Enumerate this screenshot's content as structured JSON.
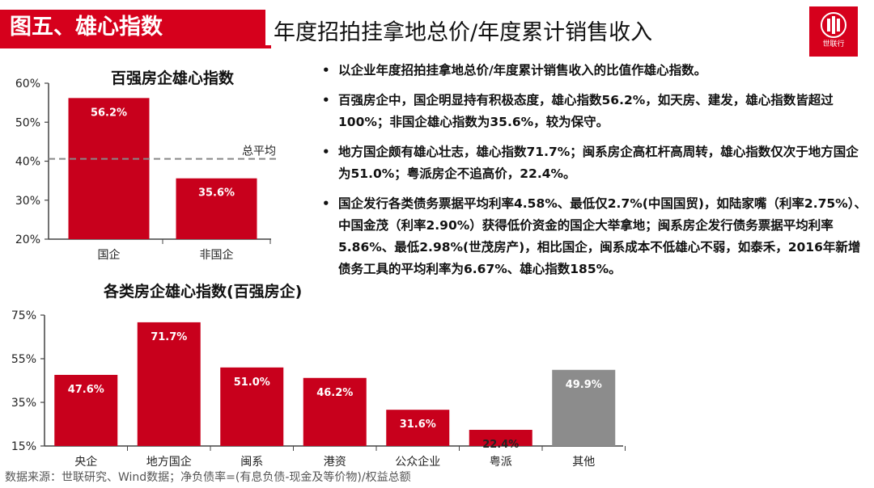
{
  "header": {
    "section_label": "图五、雄心指数",
    "title": "年度招拍挂拿地总价/年度累计销售收入",
    "logo_text": "世联行"
  },
  "bullets": [
    "以企业年度招拍挂拿地总价/年度累计销售收入的比值作雄心指数。",
    "百强房企中，国企明显持有积极态度，雄心指数56.2%，如天房、建发，雄心指数皆超过100%；非国企雄心指数为35.6%，较为保守。",
    "地方国企颇有雄心壮志，雄心指数71.7%；闽系房企高杠杆高周转，雄心指数仅次于地方国企为51.0%；粤派房企不追高价，22.4%。",
    "国企发行各类债务票据平均利率4.58%、最低仅2.7%(中国国贸)，如陆家嘴（利率2.75%）、中国金茂（利率2.90%）获得低价资金的国企大举拿地；闽系房企发行债务票据平均利率5.86%、最低2.98%(世茂房产)，相比国企，闽系成本不低雄心不弱，如泰禾，2016年新增债务工具的平均利率为6.67%、雄心指数185%。"
  ],
  "source": "数据来源：世联研究、Wind数据；净负债率=(有息负债-现金及等价物)/权益总额",
  "colors": {
    "bar_red": "#c8001c",
    "bar_gray": "#8c8c8c",
    "brand": "#d6001c"
  },
  "chart_data": [
    {
      "type": "bar",
      "title": "百强房企雄心指数",
      "categories": [
        "国企",
        "非国企"
      ],
      "values": [
        56.2,
        35.6
      ],
      "value_labels": [
        "56.2%",
        "35.6%"
      ],
      "ylim": [
        20,
        60
      ],
      "yticks": [
        "20%",
        "30%",
        "40%",
        "50%",
        "60%"
      ],
      "reference_line": {
        "value": 40.6,
        "label": "总平均"
      },
      "grid": false
    },
    {
      "type": "bar",
      "title": "各类房企雄心指数(百强房企)",
      "categories": [
        "央企",
        "地方国企",
        "闽系",
        "港资",
        "公众企业",
        "粤派",
        "其他"
      ],
      "values": [
        47.6,
        71.7,
        51.0,
        46.2,
        31.6,
        22.4,
        49.9
      ],
      "value_labels": [
        "47.6%",
        "71.7%",
        "51.0%",
        "46.2%",
        "31.6%",
        "22.4%",
        "49.9%"
      ],
      "bar_colors": [
        "red",
        "red",
        "red",
        "red",
        "red",
        "red",
        "gray"
      ],
      "ylim": [
        15,
        75
      ],
      "yticks": [
        "15%",
        "35%",
        "55%",
        "75%"
      ],
      "grid": false
    }
  ]
}
